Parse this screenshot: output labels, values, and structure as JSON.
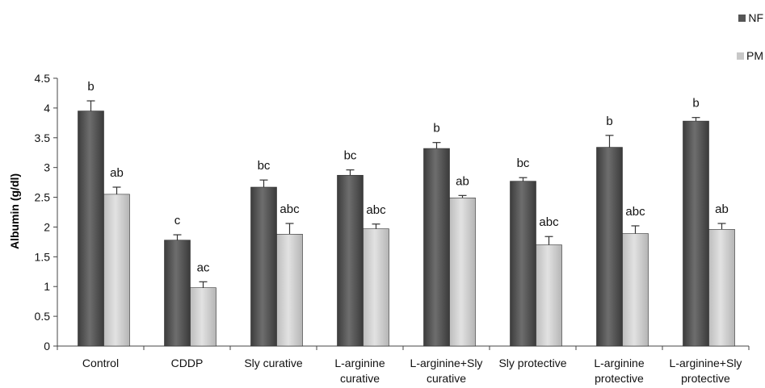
{
  "chart_data": {
    "type": "bar",
    "ylabel": "Albumin (g/dl)",
    "ylim": [
      0,
      4.5
    ],
    "yticks": [
      "0",
      "0.5",
      "1",
      "1.5",
      "2",
      "2.5",
      "3",
      "3.5",
      "4",
      "4.5"
    ],
    "categories": [
      [
        "Control"
      ],
      [
        "CDDP"
      ],
      [
        "Sly curative"
      ],
      [
        "L-arginine",
        "curative"
      ],
      [
        "L-arginine+Sly",
        "curative"
      ],
      [
        "Sly protective"
      ],
      [
        "L-arginine",
        "protective"
      ],
      [
        "L-arginine+Sly",
        "protective"
      ]
    ],
    "series": [
      {
        "name": "NF",
        "values": [
          3.95,
          1.78,
          2.67,
          2.87,
          3.32,
          2.77,
          3.34,
          3.78
        ],
        "errors": [
          0.17,
          0.09,
          0.12,
          0.09,
          0.1,
          0.06,
          0.2,
          0.06
        ],
        "labels": [
          "b",
          "c",
          "bc",
          "bc",
          "b",
          "bc",
          "b",
          "b"
        ],
        "color": "#555555"
      },
      {
        "name": "PM",
        "values": [
          2.55,
          0.98,
          1.88,
          1.97,
          2.49,
          1.7,
          1.89,
          1.96
        ],
        "errors": [
          0.12,
          0.1,
          0.18,
          0.08,
          0.04,
          0.14,
          0.13,
          0.1
        ],
        "labels": [
          "ab",
          "ac",
          "abc",
          "abc",
          "ab",
          "abc",
          "abc",
          "ab"
        ],
        "color": "#c8c8c8"
      }
    ],
    "grid": false,
    "legend_position": "top-right"
  }
}
